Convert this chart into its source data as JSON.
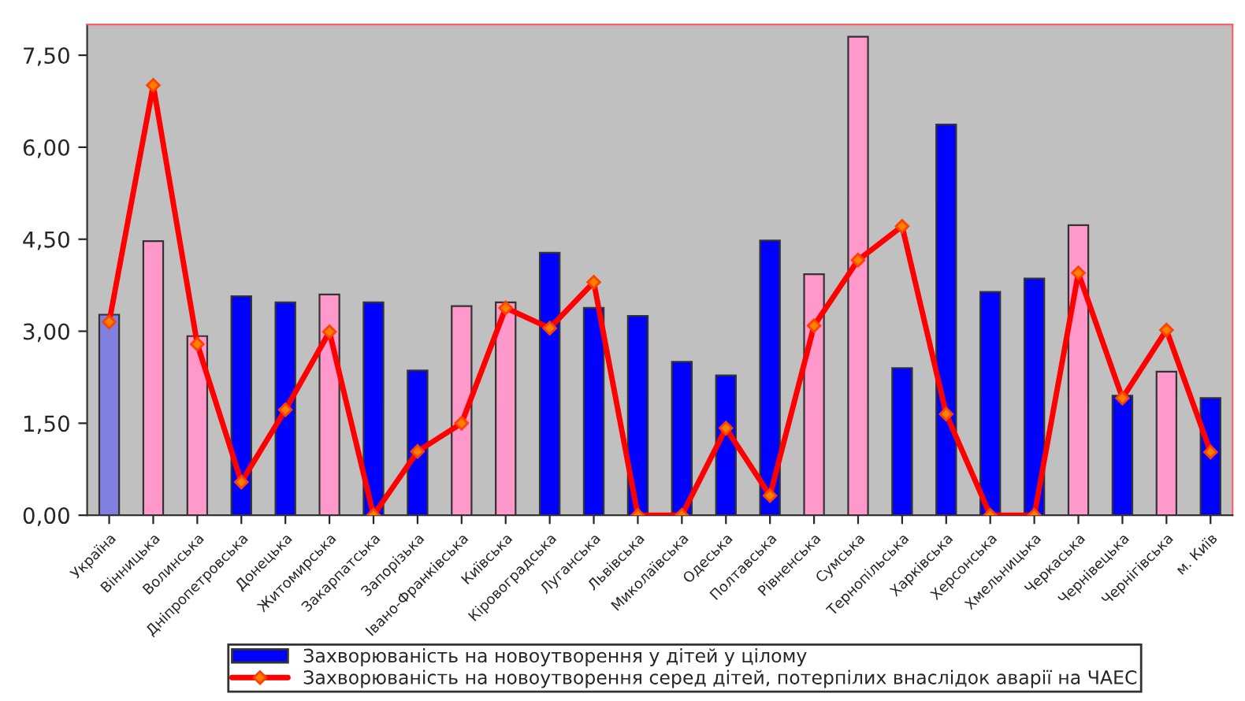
{
  "chart_data": {
    "type": "bar",
    "categories": [
      "Україна",
      "Вінницька",
      "Волинська",
      "Дніпропетровська",
      "Донецька",
      "Житомирська",
      "Закарпатська",
      "Запорізька",
      "Івано-Франківська",
      "Київська",
      "Кіровоградська",
      "Луганська",
      "Львівська",
      "Миколаївська",
      "Одеська",
      "Полтавська",
      "Рівненська",
      "Сумська",
      "Тернопільська",
      "Харківська",
      "Херсонська",
      "Хмельницька",
      "Черкаська",
      "Чернівецька",
      "Чернігівська",
      "м. Київ"
    ],
    "series": [
      {
        "name": "Захворюваність на новоутворення у дітей у цілому",
        "color": "#0000ff",
        "colors": [
          "#8080e0",
          "#ff99cc",
          "#ff99cc",
          "#0000ff",
          "#0000ff",
          "#ff99cc",
          "#0000ff",
          "#0000ff",
          "#ff99cc",
          "#ff99cc",
          "#0000ff",
          "#0000ff",
          "#0000ff",
          "#0000ff",
          "#0000ff",
          "#0000ff",
          "#ff99cc",
          "#ff99cc",
          "#0000ff",
          "#0000ff",
          "#0000ff",
          "#0000ff",
          "#ff99cc",
          "#0000ff",
          "#ff99cc",
          "#0000ff"
        ],
        "values": [
          3.27,
          4.47,
          2.92,
          3.57,
          3.47,
          3.6,
          3.47,
          2.36,
          3.41,
          3.47,
          4.28,
          3.38,
          3.25,
          2.5,
          2.28,
          4.48,
          3.93,
          7.8,
          2.4,
          6.37,
          3.64,
          3.86,
          4.73,
          1.95,
          2.34,
          1.91
        ]
      },
      {
        "name": "Захворюваність на новоутворення серед дітей, потерпілих внаслідок аварії на ЧАЕС",
        "type": "line",
        "color": "#ff0000",
        "marker": "diamond",
        "values": [
          3.15,
          7.01,
          2.79,
          0.54,
          1.72,
          2.99,
          0,
          1.04,
          1.5,
          3.38,
          3.05,
          3.8,
          0,
          0,
          1.42,
          0.32,
          3.09,
          4.16,
          4.71,
          1.65,
          0,
          0,
          3.95,
          1.91,
          3.02,
          1.03
        ]
      }
    ],
    "ylim": [
      0,
      8
    ],
    "yticks": [
      {
        "value": 0,
        "label": "0,00"
      },
      {
        "value": 1.5,
        "label": "1,50"
      },
      {
        "value": 3,
        "label": "3,00"
      },
      {
        "value": 4.5,
        "label": "4,50"
      },
      {
        "value": 6,
        "label": "6,00"
      },
      {
        "value": 7.5,
        "label": "7,50"
      }
    ],
    "grid": false,
    "legend": "bottom"
  }
}
